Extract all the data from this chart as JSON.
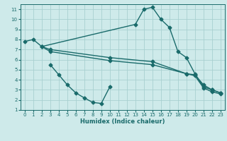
{
  "xlabel": "Humidex (Indice chaleur)",
  "bg_color": "#ceeaea",
  "grid_color": "#a8d0d0",
  "line_color": "#1a6b6b",
  "xlim": [
    -0.5,
    23.5
  ],
  "ylim": [
    1,
    11.5
  ],
  "xticks": [
    0,
    1,
    2,
    3,
    4,
    5,
    6,
    7,
    8,
    9,
    10,
    11,
    12,
    13,
    14,
    15,
    16,
    17,
    18,
    19,
    20,
    21,
    22,
    23
  ],
  "yticks": [
    1,
    2,
    3,
    4,
    5,
    6,
    7,
    8,
    9,
    10,
    11
  ],
  "line1_x": [
    0,
    1,
    2,
    13,
    14,
    15,
    16,
    17,
    18,
    19,
    20,
    21,
    22,
    23
  ],
  "line1_y": [
    7.8,
    8.0,
    7.3,
    9.5,
    11.0,
    11.2,
    10.0,
    9.2,
    6.8,
    6.2,
    4.6,
    3.3,
    3.0,
    2.7
  ],
  "line2_x": [
    2,
    3,
    10,
    15,
    19,
    20,
    21,
    22,
    23
  ],
  "line2_y": [
    7.3,
    7.0,
    6.2,
    5.8,
    4.6,
    4.5,
    3.5,
    3.0,
    2.7
  ],
  "line3_x": [
    2,
    3,
    10,
    15,
    19,
    20,
    21,
    22,
    23
  ],
  "line3_y": [
    7.3,
    6.8,
    5.9,
    5.5,
    4.6,
    4.4,
    3.2,
    2.8,
    2.6
  ],
  "line4_x": [
    3,
    4,
    5,
    6,
    7,
    8,
    9,
    10
  ],
  "line4_y": [
    5.5,
    4.5,
    3.5,
    2.7,
    2.2,
    1.75,
    1.65,
    3.3
  ],
  "marker": "D",
  "markersize": 2.5,
  "linewidth": 1.0
}
